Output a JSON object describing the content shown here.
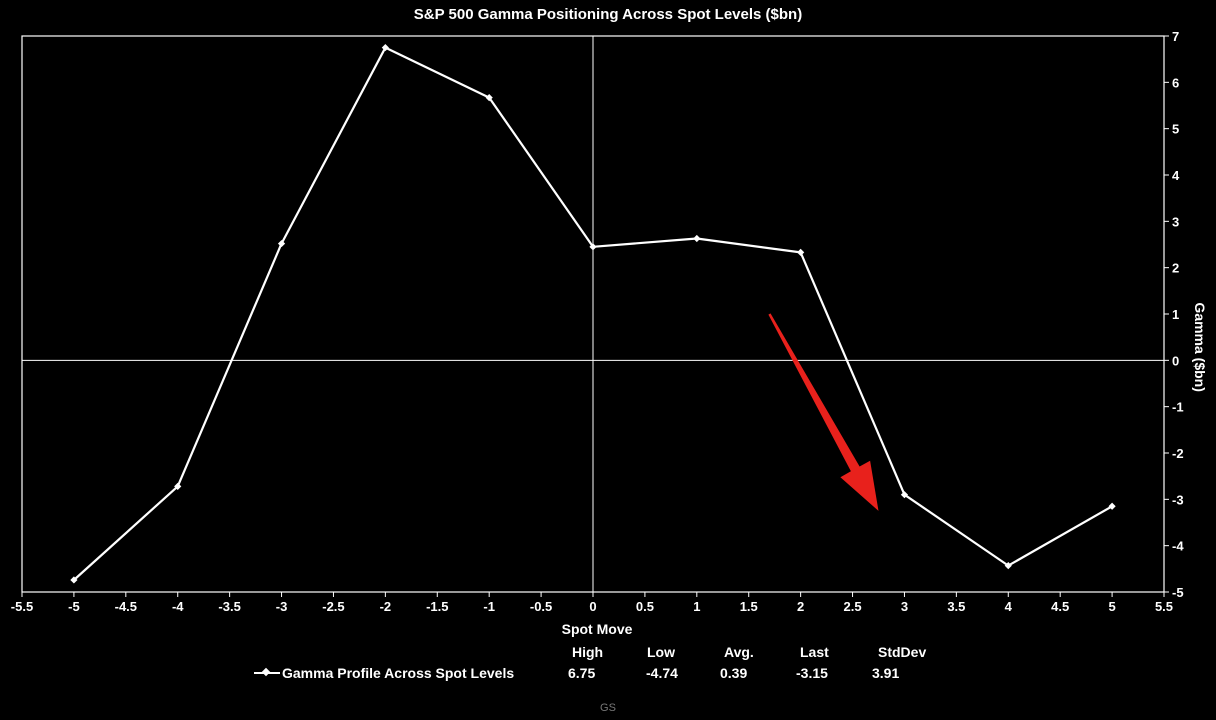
{
  "chart_data": {
    "type": "line",
    "title": "S&P 500 Gamma Positioning Across Spot Levels ($bn)",
    "xlabel": "Spot Move",
    "ylabel": "Gamma ($bn)",
    "xlim": [
      -5.5,
      5.5
    ],
    "ylim": [
      -5,
      7
    ],
    "x_ticks": [
      -5.5,
      -5,
      -4.5,
      -4,
      -3.5,
      -3,
      -2.5,
      -2,
      -1.5,
      -1,
      -0.5,
      0,
      0.5,
      1,
      1.5,
      2,
      2.5,
      3,
      3.5,
      4,
      4.5,
      5,
      5.5
    ],
    "y_ticks": [
      -5,
      -4,
      -3,
      -2,
      -1,
      0,
      1,
      2,
      3,
      4,
      5,
      6,
      7
    ],
    "grid": false,
    "reference_lines": {
      "x": 0,
      "y": 0
    },
    "series": [
      {
        "name": "Gamma Profile Across Spot Levels",
        "color": "#ffffff",
        "x": [
          -5,
          -4,
          -3,
          -2,
          -1,
          0,
          1,
          2,
          3,
          4,
          5
        ],
        "y": [
          -4.74,
          -2.72,
          2.52,
          6.75,
          5.67,
          2.45,
          2.63,
          2.33,
          -2.9,
          -4.43,
          -3.15
        ]
      }
    ],
    "annotation": {
      "type": "arrow",
      "color": "#e8211c",
      "from": [
        1.7,
        1.0
      ],
      "to": [
        2.75,
        -3.25
      ]
    },
    "legend": {
      "position": "bottom",
      "stat_labels": [
        "High",
        "Low",
        "Avg.",
        "Last",
        "StdDev"
      ],
      "stat_values": [
        "6.75",
        "-4.74",
        "0.39",
        "-3.15",
        "3.91"
      ]
    }
  },
  "source": "GS"
}
